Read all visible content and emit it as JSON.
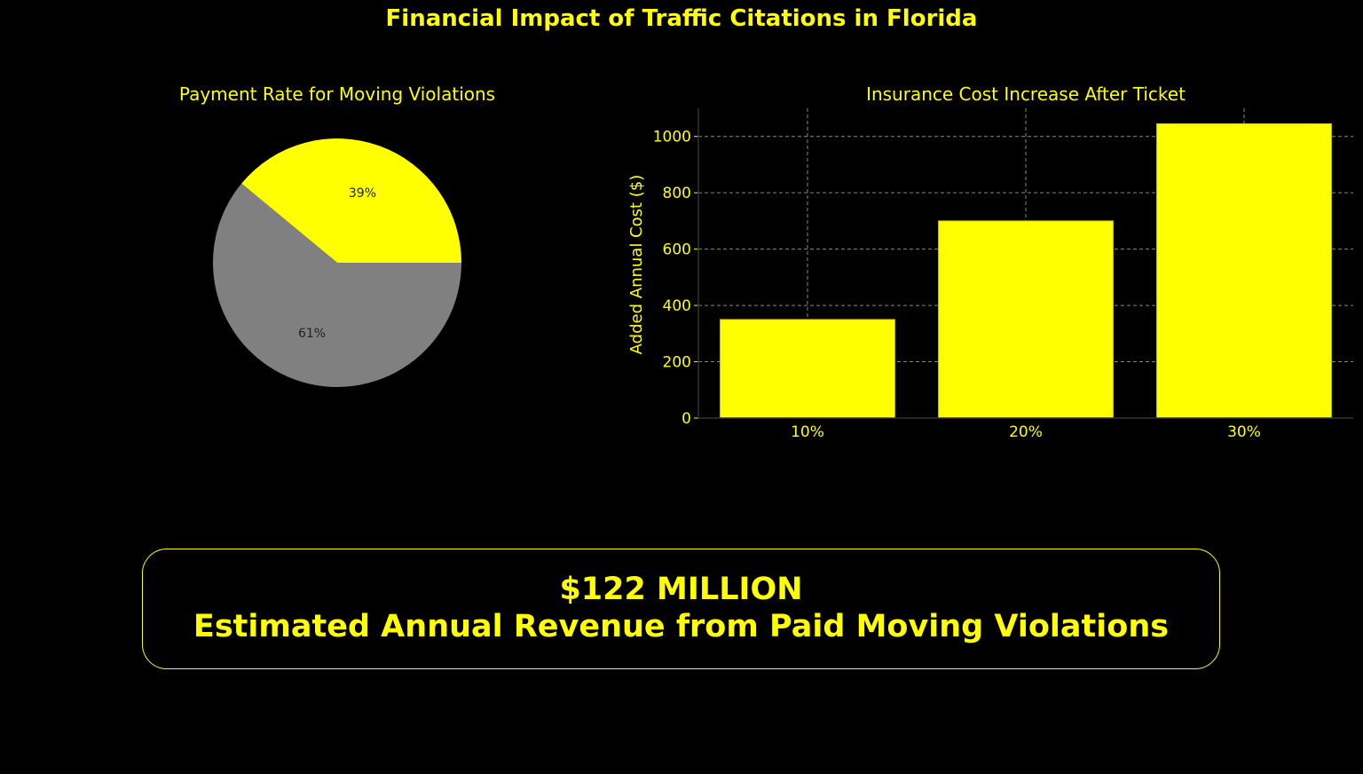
{
  "title": "Financial Impact of Traffic Citations in Florida",
  "colors": {
    "accent": "#ffff00",
    "gray": "#808080",
    "background": "#000000"
  },
  "chart_data": [
    {
      "type": "pie",
      "title": "Payment Rate for Moving Violations",
      "slices": [
        {
          "label": "39%",
          "value": 39,
          "color": "#ffff00"
        },
        {
          "label": "61%",
          "value": 61,
          "color": "#808080"
        }
      ],
      "start_angle": 0
    },
    {
      "type": "bar",
      "title": "Insurance Cost Increase After Ticket",
      "categories": [
        "10%",
        "20%",
        "30%"
      ],
      "values": [
        350,
        700,
        1045
      ],
      "xlabel": "",
      "ylabel": "Added Annual Cost ($)",
      "ylim": [
        0,
        1100
      ],
      "yticks": [
        0,
        200,
        400,
        600,
        800,
        1000
      ],
      "grid": true,
      "bar_color": "#ffff00"
    }
  ],
  "callout": {
    "line1": "$122 MILLION",
    "line2": "Estimated Annual Revenue from Paid Moving Violations"
  }
}
